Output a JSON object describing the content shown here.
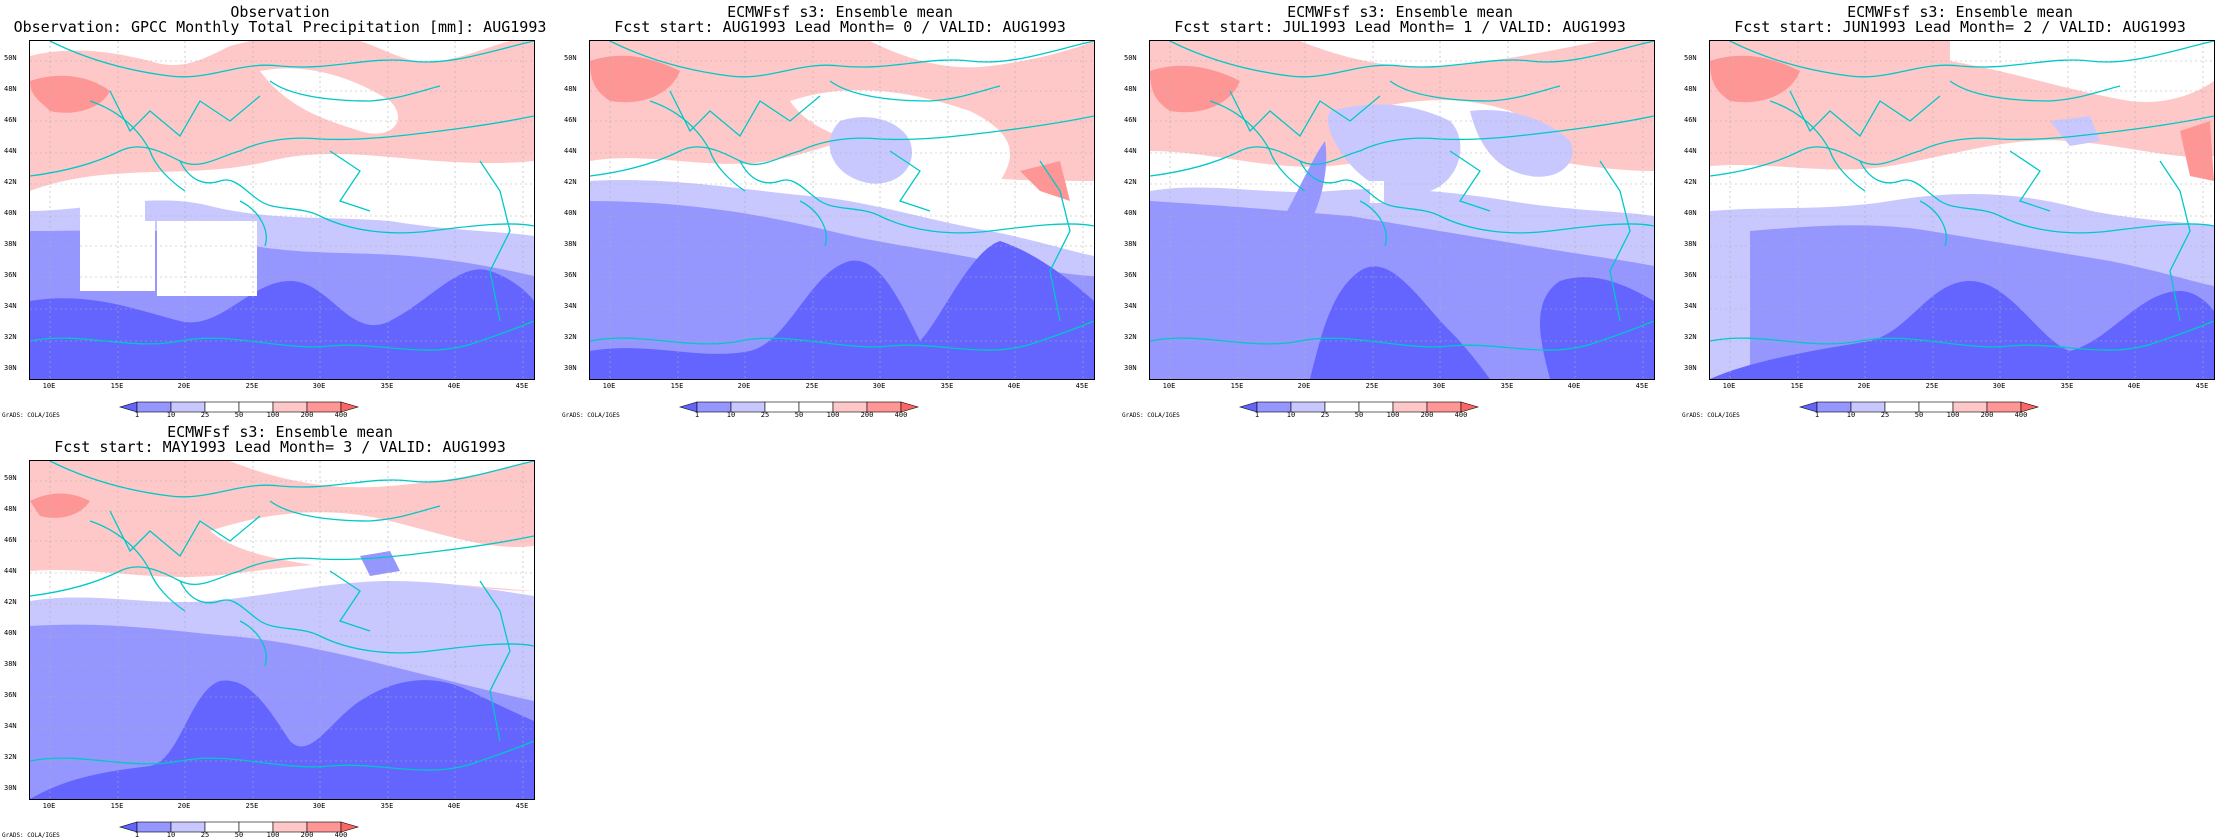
{
  "panels": [
    {
      "title1": "Observation",
      "title2": "Observation: GPCC Monthly Total Precipitation [mm]: AUG1993"
    },
    {
      "title1": "ECMWFsf s3: Ensemble mean",
      "title2": "Fcst start: AUG1993  Lead Month= 0 / VALID: AUG1993"
    },
    {
      "title1": "ECMWFsf s3: Ensemble mean",
      "title2": "Fcst start: JUL1993  Lead Month= 1 / VALID: AUG1993"
    },
    {
      "title1": "ECMWFsf s3: Ensemble mean",
      "title2": "Fcst start: JUN1993  Lead Month= 2 / VALID: AUG1993"
    },
    {
      "title1": "ECMWFsf s3: Ensemble mean",
      "title2": "Fcst start: MAY1993  Lead Month= 3 / VALID: AUG1993"
    }
  ],
  "lat_labels": [
    "50N",
    "48N",
    "46N",
    "44N",
    "42N",
    "40N",
    "38N",
    "36N",
    "34N",
    "32N",
    "30N"
  ],
  "lon_labels": [
    "10E",
    "15E",
    "20E",
    "25E",
    "30E",
    "35E",
    "40E",
    "45E"
  ],
  "colorbar": {
    "levels": [
      "1",
      "10",
      "25",
      "50",
      "100",
      "200",
      "400"
    ],
    "colors": [
      "#6464ff",
      "#9696ff",
      "#c8c8ff",
      "#ffffff",
      "#ffc8c8",
      "#ff9696",
      "#ff6464"
    ]
  },
  "credit": "GrADS: COLA/IGES"
}
